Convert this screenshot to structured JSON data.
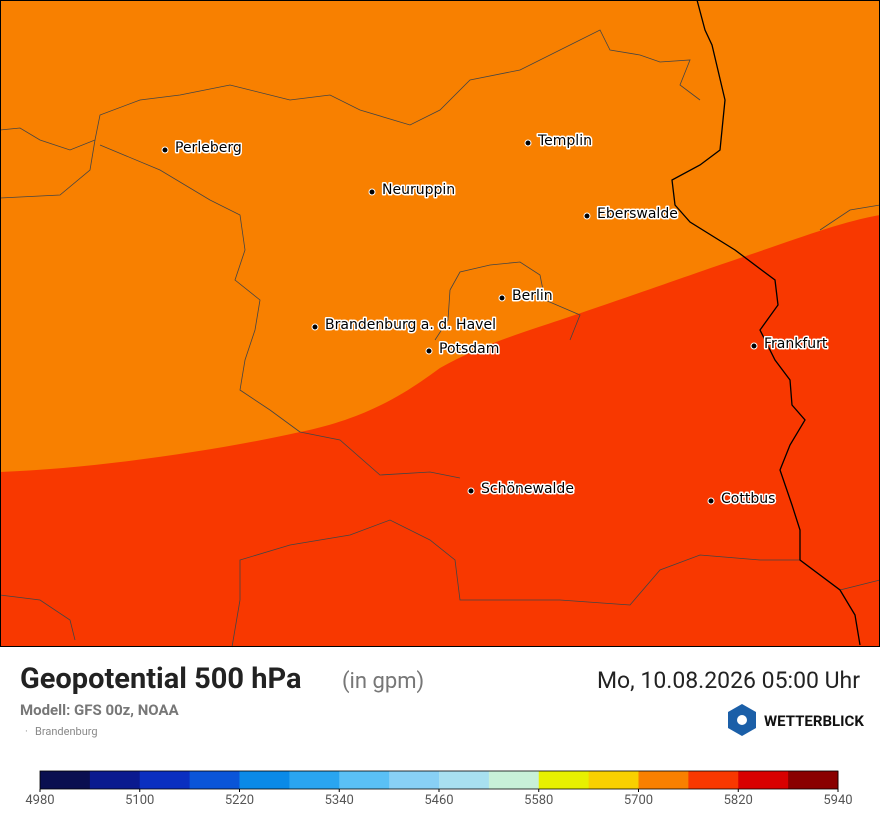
{
  "map": {
    "cities": [
      "Perleberg",
      "Neuruppin",
      "Templin",
      "Eberswalde",
      "Berlin",
      "Brandenburg a. d. Havel",
      "Potsdam",
      "Frankfurt",
      "Schönewalde",
      "Cottbus"
    ]
  },
  "footer": {
    "title": "Geopotential 500 hPa",
    "unit": "(in gpm)",
    "model": "Modell: GFS 00z, NOAA",
    "region": "Brandenburg",
    "datetime": "Mo, 10.08.2026 05:00 Uhr",
    "brand": "WETTERBLICK"
  },
  "colorbar": {
    "range": [
      4980,
      5940
    ],
    "ticks": [
      4980,
      5100,
      5220,
      5340,
      5460,
      5580,
      5700,
      5820,
      5940
    ],
    "colors": [
      "#0a0f50",
      "#0a1a8f",
      "#0a2fc0",
      "#0a55d8",
      "#0a8ae8",
      "#2aa5f0",
      "#5ac0f5",
      "#88d0f5",
      "#a8e0f0",
      "#c8f0d8",
      "#e8f000",
      "#f8d000",
      "#f88000",
      "#f83800",
      "#d80000",
      "#8a0000"
    ]
  }
}
